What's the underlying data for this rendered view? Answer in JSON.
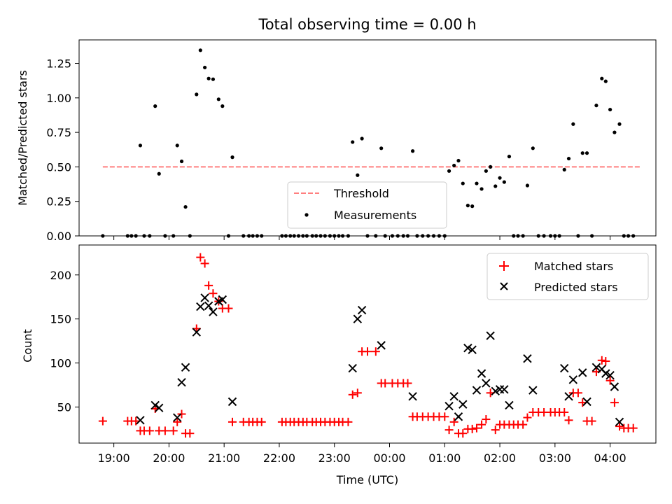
{
  "figure": {
    "title": "Total observing time = 0.00 h",
    "xlabel": "Time (UTC)"
  },
  "chart_data": [
    {
      "type": "scatter",
      "title": "Total observing time = 0.00 h",
      "xlabel": "",
      "ylabel": "Matched/Predicted stars",
      "x_unit": "hours since 19:00 UTC",
      "xlim": [
        -0.63,
        9.83
      ],
      "ylim": [
        0,
        1.42
      ],
      "grid": false,
      "legend_position": "lower-center",
      "yticks": [
        "0.00",
        "0.25",
        "0.50",
        "0.75",
        "1.00",
        "1.25"
      ],
      "threshold": {
        "name": "Threshold",
        "value": 0.5,
        "x_range": [
          -0.2,
          9.55
        ],
        "color": "#ff7f7f",
        "style": "dashed"
      },
      "series": [
        {
          "name": "Measurements",
          "color": "#000000",
          "marker": "dot",
          "points": [
            [
              -0.2,
              0
            ],
            [
              0.25,
              0
            ],
            [
              0.32,
              0
            ],
            [
              0.4,
              0
            ],
            [
              0.48,
              0.655
            ],
            [
              0.55,
              0
            ],
            [
              0.65,
              0
            ],
            [
              0.75,
              0.94
            ],
            [
              0.82,
              0.45
            ],
            [
              0.93,
              0
            ],
            [
              1.08,
              0
            ],
            [
              1.15,
              0.655
            ],
            [
              1.23,
              0.54
            ],
            [
              1.3,
              0.21
            ],
            [
              1.38,
              0
            ],
            [
              1.5,
              1.025
            ],
            [
              1.57,
              1.345
            ],
            [
              1.65,
              1.22
            ],
            [
              1.72,
              1.14
            ],
            [
              1.8,
              1.135
            ],
            [
              1.9,
              0.99
            ],
            [
              1.97,
              0.94
            ],
            [
              2.08,
              0
            ],
            [
              2.15,
              0.57
            ],
            [
              2.35,
              0
            ],
            [
              2.45,
              0
            ],
            [
              2.52,
              0
            ],
            [
              2.6,
              0
            ],
            [
              2.68,
              0
            ],
            [
              3.05,
              0
            ],
            [
              3.12,
              0
            ],
            [
              3.2,
              0
            ],
            [
              3.27,
              0
            ],
            [
              3.35,
              0
            ],
            [
              3.43,
              0
            ],
            [
              3.5,
              0
            ],
            [
              3.6,
              0
            ],
            [
              3.67,
              0
            ],
            [
              3.75,
              0
            ],
            [
              3.83,
              0
            ],
            [
              3.92,
              0
            ],
            [
              4,
              0
            ],
            [
              4.08,
              0
            ],
            [
              4.15,
              0
            ],
            [
              4.25,
              0
            ],
            [
              4.33,
              0.68
            ],
            [
              4.42,
              0.44
            ],
            [
              4.5,
              0.705
            ],
            [
              4.6,
              0
            ],
            [
              4.75,
              0
            ],
            [
              4.85,
              0.635
            ],
            [
              4.92,
              0
            ],
            [
              5.05,
              0
            ],
            [
              5.15,
              0
            ],
            [
              5.25,
              0
            ],
            [
              5.33,
              0
            ],
            [
              5.42,
              0.615
            ],
            [
              5.5,
              0
            ],
            [
              5.6,
              0
            ],
            [
              5.7,
              0
            ],
            [
              5.8,
              0
            ],
            [
              5.9,
              0
            ],
            [
              6,
              0
            ],
            [
              6.08,
              0.47
            ],
            [
              6.17,
              0.51
            ],
            [
              6.25,
              0.545
            ],
            [
              6.33,
              0.38
            ],
            [
              6.42,
              0.22
            ],
            [
              6.5,
              0.215
            ],
            [
              6.58,
              0.38
            ],
            [
              6.67,
              0.34
            ],
            [
              6.75,
              0.47
            ],
            [
              6.83,
              0.5
            ],
            [
              6.92,
              0.36
            ],
            [
              7,
              0.42
            ],
            [
              7.08,
              0.39
            ],
            [
              7.17,
              0.575
            ],
            [
              7.25,
              0
            ],
            [
              7.33,
              0
            ],
            [
              7.42,
              0
            ],
            [
              7.5,
              0.365
            ],
            [
              7.6,
              0.635
            ],
            [
              7.7,
              0
            ],
            [
              7.8,
              0
            ],
            [
              7.92,
              0
            ],
            [
              8,
              0
            ],
            [
              8.08,
              0
            ],
            [
              8.17,
              0.48
            ],
            [
              8.25,
              0.56
            ],
            [
              8.33,
              0.81
            ],
            [
              8.42,
              0
            ],
            [
              8.5,
              0.6
            ],
            [
              8.58,
              0.6
            ],
            [
              8.67,
              0
            ],
            [
              8.75,
              0.945
            ],
            [
              8.85,
              1.14
            ],
            [
              8.92,
              1.12
            ],
            [
              9,
              0.915
            ],
            [
              9.08,
              0.75
            ],
            [
              9.17,
              0.81
            ],
            [
              9.25,
              0
            ],
            [
              9.33,
              0
            ],
            [
              9.42,
              0
            ]
          ]
        }
      ]
    },
    {
      "type": "scatter",
      "title": "",
      "xlabel": "Time (UTC)",
      "ylabel": "Count",
      "x_unit": "hours since 19:00 UTC",
      "xlim": [
        -0.63,
        9.83
      ],
      "ylim": [
        9,
        234
      ],
      "grid": false,
      "legend_position": "top-right",
      "xticks": [
        "19:00",
        "20:00",
        "21:00",
        "22:00",
        "23:00",
        "00:00",
        "01:00",
        "02:00",
        "03:00",
        "04:00"
      ],
      "yticks": [
        "50",
        "100",
        "150",
        "200"
      ],
      "series": [
        {
          "name": "Matched stars",
          "color": "#ff0000",
          "marker": "plus",
          "points": [
            [
              -0.2,
              34
            ],
            [
              0.25,
              34
            ],
            [
              0.32,
              34
            ],
            [
              0.4,
              34
            ],
            [
              0.48,
              23
            ],
            [
              0.55,
              23
            ],
            [
              0.65,
              23
            ],
            [
              0.75,
              48
            ],
            [
              0.82,
              23
            ],
            [
              0.93,
              23
            ],
            [
              1.08,
              23
            ],
            [
              1.15,
              33
            ],
            [
              1.23,
              42
            ],
            [
              1.3,
              20
            ],
            [
              1.38,
              20
            ],
            [
              1.5,
              139
            ],
            [
              1.57,
              220
            ],
            [
              1.65,
              213
            ],
            [
              1.72,
              188
            ],
            [
              1.8,
              179
            ],
            [
              1.9,
              170
            ],
            [
              1.97,
              162
            ],
            [
              2.08,
              162
            ],
            [
              2.15,
              33
            ],
            [
              2.35,
              33
            ],
            [
              2.45,
              33
            ],
            [
              2.52,
              33
            ],
            [
              2.6,
              33
            ],
            [
              2.68,
              33
            ],
            [
              3.05,
              33
            ],
            [
              3.12,
              33
            ],
            [
              3.2,
              33
            ],
            [
              3.27,
              33
            ],
            [
              3.35,
              33
            ],
            [
              3.43,
              33
            ],
            [
              3.5,
              33
            ],
            [
              3.6,
              33
            ],
            [
              3.67,
              33
            ],
            [
              3.75,
              33
            ],
            [
              3.83,
              33
            ],
            [
              3.92,
              33
            ],
            [
              4,
              33
            ],
            [
              4.08,
              33
            ],
            [
              4.15,
              33
            ],
            [
              4.25,
              33
            ],
            [
              4.33,
              64
            ],
            [
              4.42,
              66
            ],
            [
              4.5,
              113
            ],
            [
              4.6,
              113
            ],
            [
              4.75,
              113
            ],
            [
              4.85,
              77
            ],
            [
              4.92,
              77
            ],
            [
              5.05,
              77
            ],
            [
              5.15,
              77
            ],
            [
              5.25,
              77
            ],
            [
              5.33,
              77
            ],
            [
              5.42,
              39
            ],
            [
              5.5,
              39
            ],
            [
              5.6,
              39
            ],
            [
              5.7,
              39
            ],
            [
              5.8,
              39
            ],
            [
              5.9,
              39
            ],
            [
              6,
              39
            ],
            [
              6.08,
              24
            ],
            [
              6.17,
              33
            ],
            [
              6.25,
              20
            ],
            [
              6.33,
              20
            ],
            [
              6.42,
              25
            ],
            [
              6.5,
              25
            ],
            [
              6.58,
              26
            ],
            [
              6.67,
              30
            ],
            [
              6.75,
              36
            ],
            [
              6.83,
              66
            ],
            [
              6.92,
              24
            ],
            [
              7,
              30
            ],
            [
              7.08,
              30
            ],
            [
              7.17,
              30
            ],
            [
              7.25,
              30
            ],
            [
              7.33,
              30
            ],
            [
              7.42,
              30
            ],
            [
              7.5,
              38
            ],
            [
              7.6,
              44
            ],
            [
              7.7,
              44
            ],
            [
              7.8,
              44
            ],
            [
              7.92,
              44
            ],
            [
              8,
              44
            ],
            [
              8.08,
              44
            ],
            [
              8.17,
              44
            ],
            [
              8.25,
              35
            ],
            [
              8.33,
              66
            ],
            [
              8.42,
              66
            ],
            [
              8.5,
              55
            ],
            [
              8.58,
              34
            ],
            [
              8.67,
              34
            ],
            [
              8.75,
              90
            ],
            [
              8.85,
              103
            ],
            [
              8.92,
              102
            ],
            [
              9,
              80
            ],
            [
              9.08,
              55
            ],
            [
              9.17,
              28
            ],
            [
              9.25,
              26
            ],
            [
              9.33,
              26
            ],
            [
              9.42,
              26
            ]
          ]
        },
        {
          "name": "Predicted stars",
          "color": "#000000",
          "marker": "x",
          "points": [
            [
              0.48,
              35
            ],
            [
              0.75,
              52
            ],
            [
              0.82,
              49
            ],
            [
              1.15,
              38
            ],
            [
              1.23,
              78
            ],
            [
              1.3,
              95
            ],
            [
              1.5,
              135
            ],
            [
              1.57,
              164
            ],
            [
              1.65,
              174
            ],
            [
              1.72,
              165
            ],
            [
              1.8,
              158
            ],
            [
              1.9,
              170
            ],
            [
              1.97,
              172
            ],
            [
              2.15,
              56
            ],
            [
              4.33,
              94
            ],
            [
              4.42,
              150
            ],
            [
              4.5,
              160
            ],
            [
              4.85,
              120
            ],
            [
              5.42,
              62
            ],
            [
              6.08,
              51
            ],
            [
              6.17,
              62
            ],
            [
              6.25,
              39
            ],
            [
              6.33,
              53
            ],
            [
              6.42,
              117
            ],
            [
              6.5,
              115
            ],
            [
              6.58,
              69
            ],
            [
              6.67,
              88
            ],
            [
              6.75,
              77
            ],
            [
              6.83,
              131
            ],
            [
              6.92,
              68
            ],
            [
              7,
              70
            ],
            [
              7.08,
              70
            ],
            [
              7.17,
              52
            ],
            [
              7.5,
              105
            ],
            [
              7.6,
              69
            ],
            [
              8.17,
              94
            ],
            [
              8.25,
              62
            ],
            [
              8.33,
              81
            ],
            [
              8.5,
              89
            ],
            [
              8.58,
              56
            ],
            [
              8.75,
              95
            ],
            [
              8.85,
              93
            ],
            [
              8.92,
              88
            ],
            [
              9,
              86
            ],
            [
              9.08,
              73
            ],
            [
              9.17,
              33
            ]
          ]
        }
      ]
    }
  ]
}
